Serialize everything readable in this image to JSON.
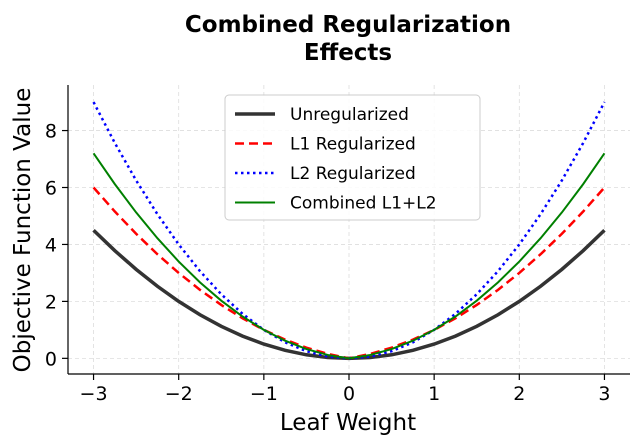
{
  "chart_data": {
    "type": "line",
    "title": "Combined Regularization\nEffects",
    "title_lines": [
      "Combined Regularization",
      "Effects"
    ],
    "xlabel": "Leaf Weight",
    "ylabel": "Objective Function Value",
    "xlim": [
      -3.3,
      3.3
    ],
    "ylim": [
      -0.55,
      9.6
    ],
    "xticks": [
      -3,
      -2,
      -1,
      0,
      1,
      2,
      3
    ],
    "xtick_labels": [
      "−3",
      "−2",
      "−1",
      "0",
      "1",
      "2",
      "3"
    ],
    "yticks": [
      0,
      2,
      4,
      6,
      8
    ],
    "ytick_labels": [
      "0",
      "2",
      "4",
      "6",
      "8"
    ],
    "grid": true,
    "legend_position": "top-center",
    "x": [
      -3,
      -2.75,
      -2.5,
      -2.25,
      -2,
      -1.75,
      -1.5,
      -1.25,
      -1,
      -0.75,
      -0.5,
      -0.25,
      0,
      0.25,
      0.5,
      0.75,
      1,
      1.25,
      1.5,
      1.75,
      2,
      2.25,
      2.5,
      2.75,
      3
    ],
    "series": [
      {
        "name": "Unregularized",
        "color": "#333333",
        "style": "solid",
        "values": [
          4.5,
          3.781,
          3.125,
          2.531,
          2,
          1.531,
          1.125,
          0.781,
          0.5,
          0.281,
          0.125,
          0.031,
          0,
          0.031,
          0.125,
          0.281,
          0.5,
          0.781,
          1.125,
          1.531,
          2,
          2.531,
          3.125,
          3.781,
          4.5
        ]
      },
      {
        "name": "L1 Regularized",
        "color": "#ff0000",
        "style": "dashed",
        "values": [
          6,
          5.156,
          4.375,
          3.656,
          3,
          2.406,
          1.875,
          1.406,
          1,
          0.656,
          0.375,
          0.156,
          0,
          0.156,
          0.375,
          0.656,
          1,
          1.406,
          1.875,
          2.406,
          3,
          3.656,
          4.375,
          5.156,
          6
        ]
      },
      {
        "name": "L2 Regularized",
        "color": "#0000ff",
        "style": "dotted",
        "values": [
          9,
          7.5625,
          6.25,
          5.0625,
          4,
          3.0625,
          2.25,
          1.5625,
          1,
          0.5625,
          0.25,
          0.0625,
          0,
          0.0625,
          0.25,
          0.5625,
          1,
          1.5625,
          2.25,
          3.0625,
          4,
          5.0625,
          6.25,
          7.5625,
          9
        ]
      },
      {
        "name": "Combined L1+L2",
        "color": "#008000",
        "style": "solid",
        "values": [
          7.2,
          6.119,
          5.125,
          4.219,
          3.4,
          2.669,
          2.025,
          1.469,
          1,
          0.619,
          0.325,
          0.119,
          0,
          0.119,
          0.325,
          0.619,
          1,
          1.469,
          2.025,
          2.669,
          3.4,
          4.219,
          5.125,
          6.119,
          7.2
        ]
      }
    ]
  }
}
